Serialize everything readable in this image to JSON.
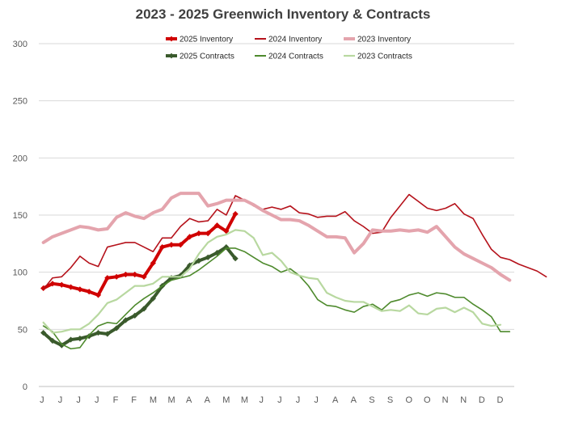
{
  "chart_data": {
    "type": "line",
    "title": "2023 - 2025 Greenwich Inventory & Contracts",
    "xlabel": "",
    "ylabel": "",
    "ylim": [
      0,
      300
    ],
    "yticks": [
      0,
      50,
      100,
      150,
      200,
      250,
      300
    ],
    "x_tick_labels": [
      "J",
      "J",
      "J",
      "J",
      "F",
      "F",
      "M",
      "M",
      "A",
      "A",
      "M",
      "M",
      "J",
      "J",
      "J",
      "J",
      "A",
      "A",
      "S",
      "S",
      "O",
      "O",
      "N",
      "N",
      "D",
      "D"
    ],
    "grid": true,
    "legend_position": "top",
    "series": [
      {
        "name": "2025 Inventory",
        "color": "#d00000",
        "width": 4,
        "marker": "diamond",
        "values": [
          86,
          90,
          89,
          87,
          85,
          83,
          80,
          95,
          96,
          98,
          98,
          96,
          108,
          122,
          124,
          124,
          131,
          134,
          134,
          141,
          136,
          151
        ]
      },
      {
        "name": "2024 Inventory",
        "color": "#b5121b",
        "width": 1.6,
        "marker": "none",
        "values": [
          85,
          95,
          96,
          104,
          114,
          108,
          105,
          122,
          124,
          126,
          126,
          122,
          118,
          130,
          130,
          140,
          147,
          144,
          145,
          155,
          150,
          167,
          163,
          158,
          155,
          157,
          155,
          158,
          152,
          151,
          148,
          149,
          149,
          153,
          145,
          140,
          134,
          135,
          148,
          158,
          168,
          162,
          156,
          154,
          156,
          160,
          151,
          147,
          133,
          120,
          113,
          111,
          107,
          104,
          101,
          96
        ]
      },
      {
        "name": "2023 Inventory",
        "color": "#e4a4ad",
        "width": 4,
        "marker": "none",
        "values": [
          126,
          131,
          134,
          137,
          140,
          139,
          137,
          138,
          148,
          152,
          149,
          147,
          152,
          155,
          165,
          169,
          169,
          169,
          158,
          160,
          163,
          163,
          163,
          159,
          154,
          150,
          146,
          146,
          145,
          141,
          136,
          131,
          131,
          130,
          117,
          125,
          137,
          136,
          136,
          137,
          136,
          137,
          135,
          140,
          131,
          122,
          116,
          112,
          108,
          104,
          98,
          93
        ]
      },
      {
        "name": "2025 Contracts",
        "color": "#3a5a2c",
        "width": 4,
        "marker": "diamond",
        "values": [
          47,
          40,
          36,
          41,
          42,
          44,
          47,
          46,
          51,
          58,
          62,
          68,
          77,
          88,
          95,
          97,
          106,
          110,
          113,
          117,
          122,
          112
        ]
      },
      {
        "name": "2024 Contracts",
        "color": "#4e8a2d",
        "width": 1.6,
        "marker": "none",
        "values": [
          53,
          48,
          37,
          33,
          34,
          45,
          53,
          56,
          55,
          63,
          71,
          77,
          82,
          88,
          93,
          95,
          97,
          102,
          108,
          114,
          121,
          121,
          118,
          113,
          108,
          105,
          100,
          103,
          97,
          88,
          76,
          71,
          70,
          67,
          65,
          70,
          72,
          67,
          74,
          76,
          80,
          82,
          79,
          82,
          81,
          78,
          78,
          72,
          67,
          61,
          48,
          48
        ]
      },
      {
        "name": "2023 Contracts",
        "color": "#b8d8a0",
        "width": 2.2,
        "marker": "none",
        "values": [
          56,
          47,
          48,
          50,
          50,
          55,
          63,
          73,
          76,
          82,
          88,
          88,
          90,
          96,
          96,
          96,
          103,
          116,
          126,
          131,
          133,
          137,
          136,
          130,
          115,
          117,
          110,
          100,
          97,
          95,
          94,
          82,
          78,
          75,
          74,
          74,
          70,
          66,
          67,
          66,
          71,
          64,
          63,
          68,
          69,
          65,
          69,
          65,
          55,
          53,
          54
        ]
      }
    ]
  }
}
